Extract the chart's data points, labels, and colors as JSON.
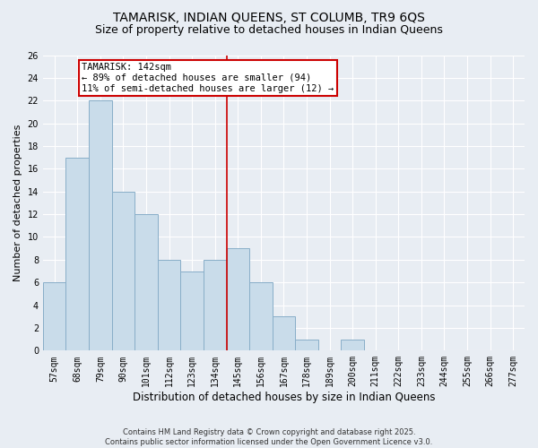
{
  "title": "TAMARISK, INDIAN QUEENS, ST COLUMB, TR9 6QS",
  "subtitle": "Size of property relative to detached houses in Indian Queens",
  "xlabel": "Distribution of detached houses by size in Indian Queens",
  "ylabel": "Number of detached properties",
  "categories": [
    "57sqm",
    "68sqm",
    "79sqm",
    "90sqm",
    "101sqm",
    "112sqm",
    "123sqm",
    "134sqm",
    "145sqm",
    "156sqm",
    "167sqm",
    "178sqm",
    "189sqm",
    "200sqm",
    "211sqm",
    "222sqm",
    "233sqm",
    "244sqm",
    "255sqm",
    "266sqm",
    "277sqm"
  ],
  "values": [
    6,
    17,
    22,
    14,
    12,
    8,
    7,
    8,
    9,
    6,
    3,
    1,
    0,
    1,
    0,
    0,
    0,
    0,
    0,
    0,
    0
  ],
  "bar_color": "#c9dcea",
  "bar_edge_color": "#88aec8",
  "vline_color": "#cc0000",
  "annotation_box_color": "#cc0000",
  "annotation_title": "TAMARISK: 142sqm",
  "annotation_line2": "← 89% of detached houses are smaller (94)",
  "annotation_line3": "11% of semi-detached houses are larger (12) →",
  "ylim": [
    0,
    26
  ],
  "yticks": [
    0,
    2,
    4,
    6,
    8,
    10,
    12,
    14,
    16,
    18,
    20,
    22,
    24,
    26
  ],
  "background_color": "#e8edf3",
  "grid_color": "#ffffff",
  "footer": "Contains HM Land Registry data © Crown copyright and database right 2025.\nContains public sector information licensed under the Open Government Licence v3.0.",
  "title_fontsize": 10,
  "subtitle_fontsize": 9,
  "xlabel_fontsize": 8.5,
  "ylabel_fontsize": 8,
  "tick_fontsize": 7,
  "annotation_fontsize": 7.5,
  "footer_fontsize": 6
}
